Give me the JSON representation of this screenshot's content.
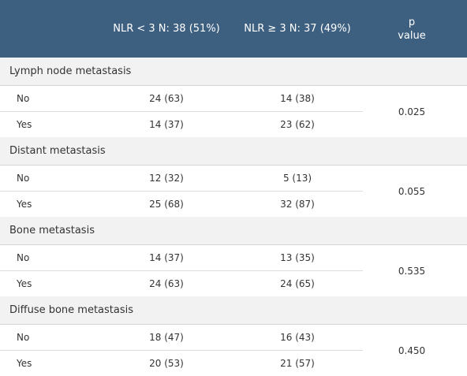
{
  "header": {
    "col0": "",
    "col1": "NLR < 3 N: 38 (51%)",
    "col2": "NLR ≥ 3 N: 37 (49%)",
    "col3_line1": "p",
    "col3_line2": "value"
  },
  "sections": [
    {
      "title": "Lymph node metastasis",
      "rows": [
        {
          "label": "No",
          "a": "24 (63)",
          "b": "14 (38)"
        },
        {
          "label": "Yes",
          "a": "14 (37)",
          "b": "23 (62)"
        }
      ],
      "p": "0.025"
    },
    {
      "title": "Distant metastasis",
      "rows": [
        {
          "label": "No",
          "a": "12 (32)",
          "b": "5 (13)"
        },
        {
          "label": "Yes",
          "a": "25 (68)",
          "b": "32 (87)"
        }
      ],
      "p": "0.055"
    },
    {
      "title": "Bone metastasis",
      "rows": [
        {
          "label": "No",
          "a": "14 (37)",
          "b": "13 (35)"
        },
        {
          "label": "Yes",
          "a": "24 (63)",
          "b": "24 (65)"
        }
      ],
      "p": "0.535"
    },
    {
      "title": "Diffuse bone metastasis",
      "rows": [
        {
          "label": "No",
          "a": "18 (47)",
          "b": "16 (43)"
        },
        {
          "label": "Yes",
          "a": "20 (53)",
          "b": "21 (57)"
        }
      ],
      "p": "0.450"
    }
  ]
}
